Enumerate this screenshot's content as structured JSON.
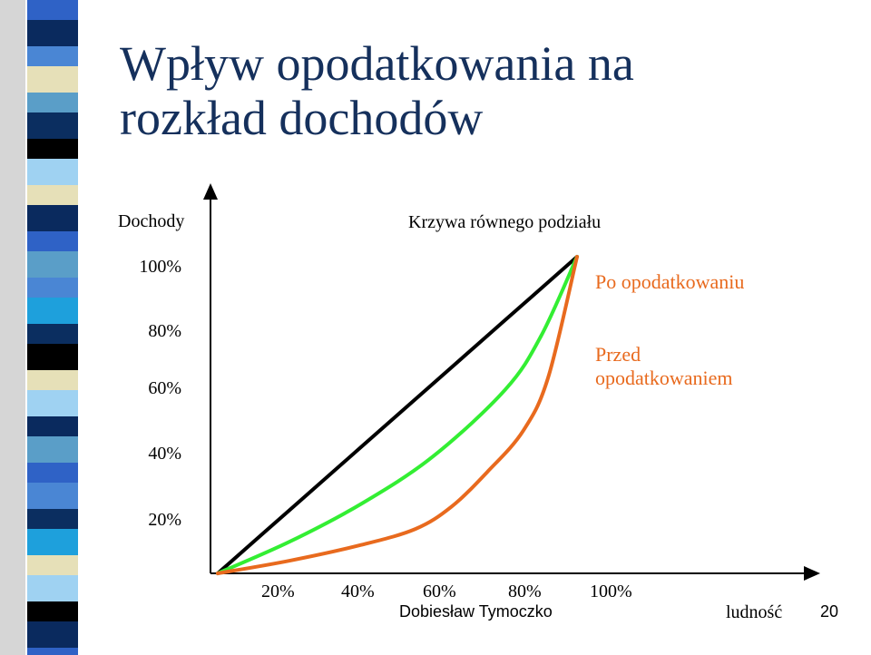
{
  "title": {
    "line1": "Wpływ opodatkowania na",
    "line2": "rozkład dochodów"
  },
  "chart_data": {
    "type": "line",
    "ylabel": "Dochody",
    "xlabel": "ludność",
    "x_ticks": [
      "20%",
      "40%",
      "60%",
      "80%",
      "100%"
    ],
    "y_ticks": [
      "100%",
      "80%",
      "60%",
      "40%",
      "20%"
    ],
    "series": [
      {
        "name": "Krzywa równego podziału",
        "color": "#000000",
        "points": [
          [
            0,
            0
          ],
          [
            20,
            20
          ],
          [
            40,
            40
          ],
          [
            60,
            60
          ],
          [
            80,
            80
          ],
          [
            100,
            100
          ]
        ]
      },
      {
        "name": "Po opodatkowaniu",
        "color": "#33ee33",
        "points": [
          [
            0,
            0
          ],
          [
            20,
            10
          ],
          [
            40,
            22
          ],
          [
            60,
            37
          ],
          [
            80,
            58
          ],
          [
            90,
            75
          ],
          [
            100,
            100
          ]
        ]
      },
      {
        "name": "Przed opodatkowaniem",
        "color": "#e86a1e",
        "points": [
          [
            0,
            0
          ],
          [
            20,
            4
          ],
          [
            40,
            9
          ],
          [
            55,
            14
          ],
          [
            65,
            21
          ],
          [
            75,
            32
          ],
          [
            85,
            45
          ],
          [
            92,
            62
          ],
          [
            100,
            100
          ]
        ]
      }
    ]
  },
  "labels": {
    "equality": "Krzywa równego podziału",
    "after_tax": "Po opodatkowaniu",
    "before_tax_line1": "Przed",
    "before_tax_line2": "opodatkowaniem"
  },
  "footer": {
    "author": "Dobiesław Tymoczko",
    "page": "20"
  },
  "colors": {
    "title": "#15305c",
    "after_tax": "#33ee33",
    "before_tax": "#e86a1e",
    "equality": "#000000"
  }
}
